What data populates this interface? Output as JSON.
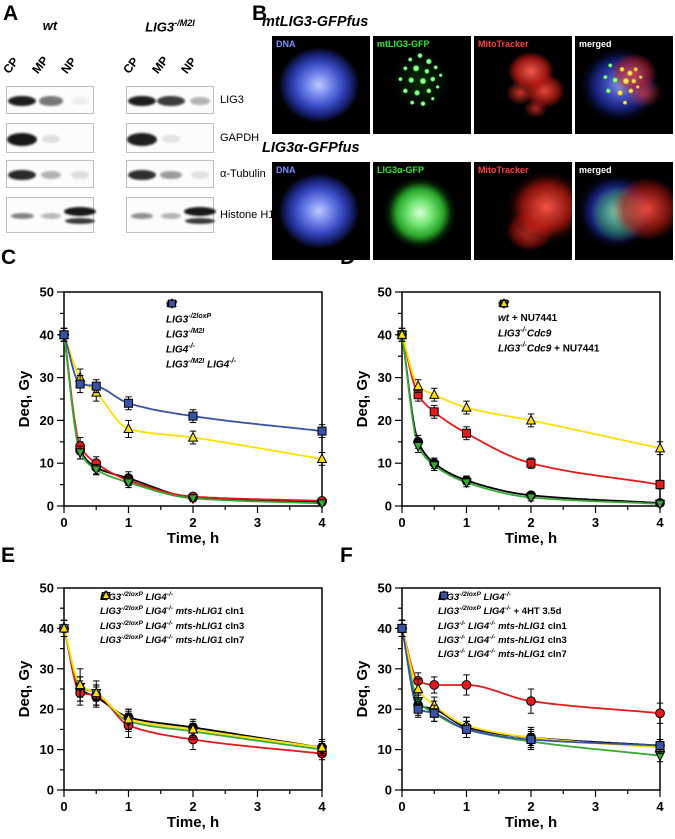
{
  "figure": {
    "panel_labels": {
      "A": "A",
      "B": "B",
      "C": "C",
      "D": "D",
      "E": "E",
      "F": "F"
    }
  },
  "panelA": {
    "groups": [
      {
        "title_parts": [
          {
            "t": "wt"
          }
        ],
        "lanes": [
          "CP",
          "MP",
          "NP"
        ]
      },
      {
        "title_parts": [
          {
            "t": "LIG3"
          },
          {
            "sup": "-/M2I"
          }
        ],
        "lanes": [
          "CP",
          "MP",
          "NP"
        ]
      }
    ],
    "rows": [
      {
        "label": "LIG3",
        "bands": [
          [
            0.92,
            0.55,
            0.06
          ],
          [
            0.92,
            0.8,
            0.3
          ]
        ]
      },
      {
        "label": "GAPDH",
        "bands": [
          [
            0.95,
            0.12,
            0.04
          ],
          [
            0.92,
            0.1,
            0.04
          ]
        ]
      },
      {
        "label": "α-Tubulin",
        "bands": [
          [
            0.88,
            0.3,
            0.12
          ],
          [
            0.85,
            0.4,
            0.1
          ]
        ]
      },
      {
        "label": "Histone H1",
        "bands": [
          [
            0.5,
            0.28,
            0.95
          ],
          [
            0.45,
            0.3,
            0.95
          ]
        ],
        "np_double": true
      }
    ]
  },
  "panelB": {
    "rows": [
      {
        "title": "mtLIG3-GFPfus",
        "cells": [
          {
            "label": "DNA",
            "label_color": "#7b8cff",
            "art": "dna1"
          },
          {
            "label": "mtLIG3-GFP",
            "label_color": "#35e835",
            "art": "punctate"
          },
          {
            "label": "MitoTracker",
            "label_color": "#ff4040",
            "art": "mito1"
          },
          {
            "label": "merged",
            "label_color": "#ffffff",
            "art": "merged1"
          }
        ]
      },
      {
        "title": "LIG3α-GFPfus",
        "cells": [
          {
            "label": "DNA",
            "label_color": "#7b8cff",
            "art": "dna2"
          },
          {
            "label": "LIG3α-GFP",
            "label_color": "#35e835",
            "art": "diffuse"
          },
          {
            "label": "MitoTracker",
            "label_color": "#ff4040",
            "art": "mito2"
          },
          {
            "label": "merged",
            "label_color": "#ffffff",
            "art": "merged2"
          }
        ]
      }
    ]
  },
  "chart_data": [
    {
      "id": "C",
      "type": "line",
      "xlabel": "Time, h",
      "ylabel": "Deq, Gy",
      "xlim": [
        0,
        4
      ],
      "ylim": [
        0,
        50
      ],
      "xticks": [
        0,
        1,
        2,
        3,
        4
      ],
      "yticks": [
        0,
        10,
        20,
        30,
        40,
        50
      ],
      "x": [
        0,
        0.25,
        0.5,
        1,
        2,
        4
      ],
      "series": [
        {
          "label_parts": [
            {
              "t": "wt"
            }
          ],
          "marker": "circle",
          "color": "#000000",
          "y": [
            40,
            13,
            9,
            6.5,
            2,
            1
          ],
          "err": [
            1.5,
            2,
            1.5,
            1.5,
            0.8,
            0.6
          ]
        },
        {
          "label_parts": [
            {
              "t": "LIG3"
            },
            {
              "sup": "-/2loxP"
            }
          ],
          "marker": "circle",
          "color": "#e31a1c",
          "y": [
            40,
            14,
            10,
            6,
            2.2,
            1.2
          ],
          "err": [
            1.5,
            2,
            1.5,
            1.2,
            0.8,
            0.6
          ]
        },
        {
          "label_parts": [
            {
              "t": "LIG3"
            },
            {
              "sup": "-/M2I"
            }
          ],
          "marker": "tri-down",
          "color": "#3aa835",
          "y": [
            40,
            12.5,
            8.5,
            5.5,
            1.8,
            0.6
          ],
          "err": [
            1.5,
            1.5,
            1.2,
            1.2,
            0.8,
            0.5
          ]
        },
        {
          "label_parts": [
            {
              "t": "LIG4"
            },
            {
              "sup": "-/-"
            }
          ],
          "marker": "tri-up",
          "color": "#ffdf00",
          "y": [
            40,
            30,
            26.5,
            18,
            16,
            11
          ],
          "err": [
            1.5,
            2,
            2,
            2,
            1.5,
            1.5
          ]
        },
        {
          "label_parts": [
            {
              "t": "LIG3"
            },
            {
              "sup": "-/M2I"
            },
            {
              "t": " LIG4"
            },
            {
              "sup": "-/-"
            }
          ],
          "marker": "square",
          "color": "#3953a4",
          "y": [
            40,
            28.5,
            28,
            24,
            21,
            17.5
          ],
          "err": [
            1.5,
            2,
            1.5,
            1.5,
            1.5,
            1.5
          ]
        }
      ]
    },
    {
      "id": "D",
      "type": "line",
      "xlabel": "Time, h",
      "ylabel": "Deq, Gy",
      "xlim": [
        0,
        4
      ],
      "ylim": [
        0,
        50
      ],
      "xticks": [
        0,
        1,
        2,
        3,
        4
      ],
      "yticks": [
        0,
        10,
        20,
        30,
        40,
        50
      ],
      "x": [
        0,
        0.25,
        0.5,
        1,
        2,
        4
      ],
      "series": [
        {
          "label_parts": [
            {
              "t": "wt"
            }
          ],
          "marker": "circle",
          "color": "#000000",
          "y": [
            40,
            15,
            10,
            6,
            2.5,
            0.7
          ],
          "err": [
            1.5,
            1.5,
            1.2,
            1,
            0.8,
            0.5
          ]
        },
        {
          "label_parts": [
            {
              "t": "wt"
            },
            {
              "n": " + NU7441"
            }
          ],
          "marker": "square",
          "color": "#e31a1c",
          "y": [
            40,
            26,
            22,
            17,
            10,
            5
          ],
          "err": [
            1.5,
            1.5,
            1.5,
            1.5,
            1.2,
            1
          ]
        },
        {
          "label_parts": [
            {
              "t": "LIG3"
            },
            {
              "sup": "-/-"
            },
            {
              "t": "Cdc9"
            }
          ],
          "marker": "tri-down",
          "color": "#3aa835",
          "y": [
            40,
            14,
            9.5,
            5.5,
            2,
            0.5
          ],
          "err": [
            1.5,
            1.5,
            1.2,
            1,
            0.8,
            0.5
          ]
        },
        {
          "label_parts": [
            {
              "t": "LIG3"
            },
            {
              "sup": "-/-"
            },
            {
              "t": "Cdc9"
            },
            {
              "n": " + NU7441"
            }
          ],
          "marker": "tri-up",
          "color": "#ffdf00",
          "y": [
            40,
            28,
            26,
            23,
            20,
            13.5
          ],
          "err": [
            1.5,
            1.5,
            1.5,
            1.5,
            1.5,
            1.5
          ]
        }
      ]
    },
    {
      "id": "E",
      "type": "line",
      "xlabel": "Time, h",
      "ylabel": "Deq, Gy",
      "xlim": [
        0,
        4
      ],
      "ylim": [
        0,
        50
      ],
      "xticks": [
        0,
        1,
        2,
        3,
        4
      ],
      "yticks": [
        0,
        10,
        20,
        30,
        40,
        50
      ],
      "x": [
        0,
        0.25,
        0.5,
        1,
        2,
        4
      ],
      "series": [
        {
          "label_parts": [
            {
              "t": "LIG3"
            },
            {
              "sup": "-/2loxP"
            },
            {
              "t": " LIG4"
            },
            {
              "sup": "-/-"
            }
          ],
          "marker": "circle",
          "color": "#000000",
          "y": [
            40,
            25,
            23,
            18,
            15.5,
            10.5
          ],
          "err": [
            2,
            3,
            2.5,
            2,
            2,
            2
          ]
        },
        {
          "label_parts": [
            {
              "t": "LIG3"
            },
            {
              "sup": "-/2loxP"
            },
            {
              "t": " LIG4"
            },
            {
              "sup": "-/-"
            },
            {
              "t": " mts-hLIG1"
            },
            {
              "n": " cln1"
            }
          ],
          "marker": "circle",
          "color": "#e31a1c",
          "y": [
            40,
            24,
            23.5,
            16,
            12.5,
            9
          ],
          "err": [
            2,
            3,
            2.5,
            3,
            2.5,
            1.5
          ]
        },
        {
          "label_parts": [
            {
              "t": "LIG3"
            },
            {
              "sup": "-/2loxP"
            },
            {
              "t": " LIG4"
            },
            {
              "sup": "-/-"
            },
            {
              "t": " mts-hLIG1"
            },
            {
              "n": " cln3"
            }
          ],
          "marker": "tri-down",
          "color": "#3aa835",
          "y": [
            40,
            25.5,
            24,
            17,
            14.5,
            10
          ],
          "err": [
            2,
            2.5,
            2,
            2.5,
            2,
            1.5
          ]
        },
        {
          "label_parts": [
            {
              "t": "LIG3"
            },
            {
              "sup": "-/2loxP"
            },
            {
              "t": " LIG4"
            },
            {
              "sup": "-/-"
            },
            {
              "t": " mts-hLIG1"
            },
            {
              "n": " cln7"
            }
          ],
          "marker": "tri-up",
          "color": "#ffdf00",
          "y": [
            40,
            26,
            24,
            17.5,
            15,
            10.5
          ],
          "err": [
            2,
            4,
            3,
            2.5,
            2,
            1.5
          ]
        }
      ]
    },
    {
      "id": "F",
      "type": "line",
      "xlabel": "Time, h",
      "ylabel": "Deq, Gy",
      "xlim": [
        0,
        4
      ],
      "ylim": [
        0,
        50
      ],
      "xticks": [
        0,
        1,
        2,
        3,
        4
      ],
      "yticks": [
        0,
        10,
        20,
        30,
        40,
        50
      ],
      "x": [
        0,
        0.25,
        0.5,
        1,
        2,
        4
      ],
      "series": [
        {
          "label_parts": [
            {
              "t": "LIG3"
            },
            {
              "sup": "-/2loxP"
            },
            {
              "t": " LIG4"
            },
            {
              "sup": "-/-"
            }
          ],
          "marker": "circle",
          "color": "#000000",
          "y": [
            40,
            21,
            20,
            15.5,
            13,
            11
          ],
          "err": [
            2,
            2.5,
            2,
            2.5,
            2.5,
            1.5
          ]
        },
        {
          "label_parts": [
            {
              "t": "LIG3"
            },
            {
              "sup": "-/2loxP"
            },
            {
              "t": " LIG4"
            },
            {
              "sup": "-/-"
            },
            {
              "n": " + 4HT 3.5d"
            }
          ],
          "marker": "circle",
          "color": "#e31a1c",
          "y": [
            40,
            27,
            26,
            26,
            22,
            19
          ],
          "err": [
            2,
            2,
            2,
            2.5,
            3,
            2.5
          ]
        },
        {
          "label_parts": [
            {
              "t": "LIG3"
            },
            {
              "sup": "-/-"
            },
            {
              "t": " LIG4"
            },
            {
              "sup": "-/-"
            },
            {
              "t": " mts-hLIG1"
            },
            {
              "n": " cln1"
            }
          ],
          "marker": "tri-down",
          "color": "#3aa835",
          "y": [
            40,
            22,
            19,
            15,
            12,
            8.5
          ],
          "err": [
            2,
            2,
            2,
            2,
            2,
            1.5
          ]
        },
        {
          "label_parts": [
            {
              "t": "LIG3"
            },
            {
              "sup": "-/-"
            },
            {
              "t": " LIG4"
            },
            {
              "sup": "-/-"
            },
            {
              "t": " mts-hLIG1"
            },
            {
              "n": " cln3"
            }
          ],
          "marker": "tri-up",
          "color": "#ffdf00",
          "y": [
            40,
            25,
            21,
            16,
            13,
            10.5
          ],
          "err": [
            2,
            2.5,
            2,
            2,
            2,
            1.5
          ]
        },
        {
          "label_parts": [
            {
              "t": "LIG3"
            },
            {
              "sup": "-/-"
            },
            {
              "t": " LIG4"
            },
            {
              "sup": "-/-"
            },
            {
              "t": " mts-hLIG1"
            },
            {
              "n": " cln7"
            }
          ],
          "marker": "square",
          "color": "#3953a4",
          "y": [
            40,
            20,
            19,
            15,
            12.5,
            11
          ],
          "err": [
            2,
            2,
            2,
            2,
            2,
            1.5
          ]
        }
      ]
    }
  ]
}
